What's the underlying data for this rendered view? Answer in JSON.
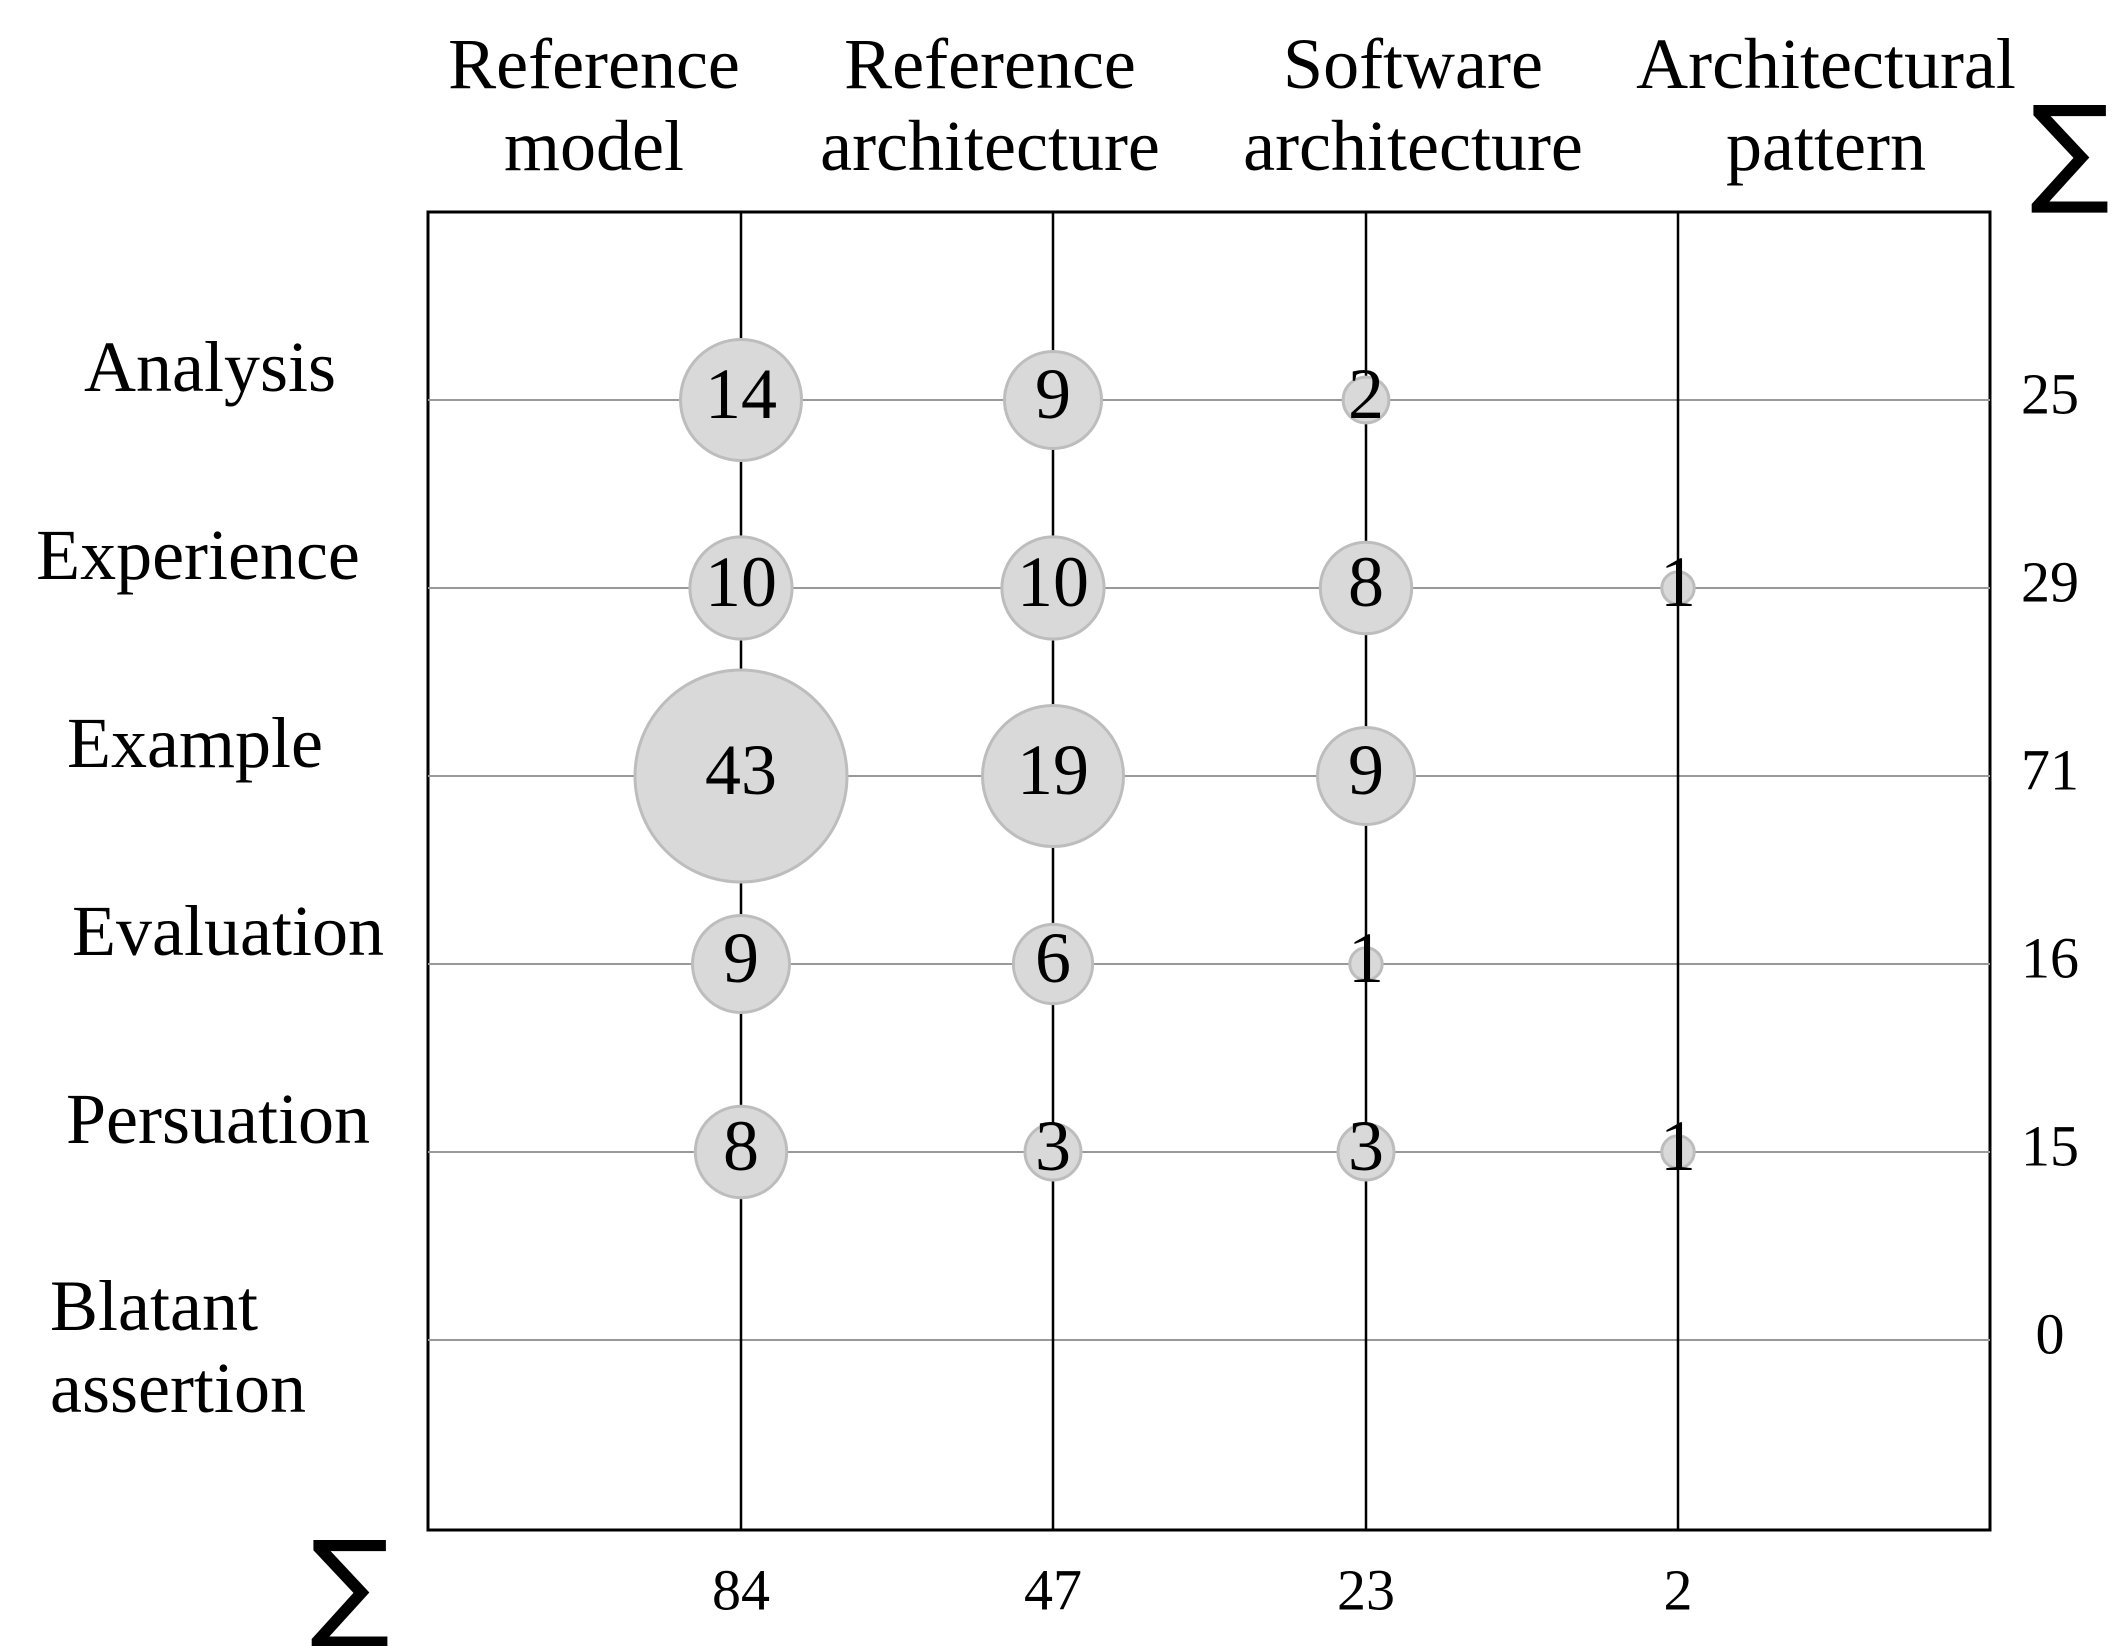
{
  "chart_data": {
    "type": "bubble-matrix",
    "columns": [
      "Reference model",
      "Reference architecture",
      "Software architecture",
      "Architectural pattern"
    ],
    "rows": [
      "Analysis",
      "Experience",
      "Example",
      "Evaluation",
      "Persuation",
      "Blatant assertion"
    ],
    "values": [
      [
        14,
        9,
        2,
        null
      ],
      [
        10,
        10,
        8,
        1
      ],
      [
        43,
        19,
        9,
        null
      ],
      [
        9,
        6,
        1,
        null
      ],
      [
        8,
        3,
        3,
        1
      ],
      [
        null,
        null,
        null,
        null
      ]
    ],
    "row_sums": [
      25,
      29,
      71,
      16,
      15,
      0
    ],
    "column_sums": [
      84,
      47,
      23,
      2
    ],
    "sum_symbol": "∑",
    "colors": {
      "bubble_fill": "#d9d9d9",
      "bubble_stroke": "#bdbdbd",
      "row_line": "#999999",
      "column_line": "#000000"
    }
  }
}
